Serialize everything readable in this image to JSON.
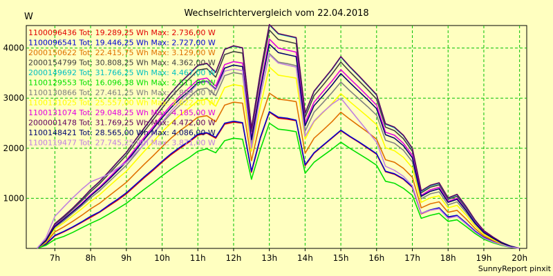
{
  "chart_data": {
    "type": "line",
    "title": "Wechselrichtervergleich vom 22.04.2018",
    "ylabel": "W",
    "credit": "SunnyReport pinxit",
    "xlim": [
      6.2,
      20.2
    ],
    "ylim": [
      0,
      4450
    ],
    "grid": true,
    "legend_position": "top-left",
    "x_ticks": [
      7,
      8,
      9,
      10,
      11,
      12,
      13,
      14,
      15,
      16,
      17,
      18,
      19,
      20
    ],
    "x_tick_labels": [
      "7h",
      "8h",
      "9h",
      "10h",
      "11h",
      "12h",
      "13h",
      "14h",
      "15h",
      "16h",
      "17h",
      "18h",
      "19h",
      "20h"
    ],
    "y_ticks": [
      1000,
      2000,
      3000,
      4000
    ],
    "y_tick_labels": [
      "1000",
      "2000",
      "3000",
      "4000"
    ],
    "x": [
      6.5,
      6.75,
      7,
      7.25,
      7.5,
      7.75,
      8,
      8.25,
      8.5,
      8.75,
      9,
      9.25,
      9.5,
      9.75,
      10,
      10.25,
      10.5,
      10.75,
      11,
      11.25,
      11.5,
      11.75,
      12,
      12.25,
      12.5,
      12.75,
      13,
      13.25,
      13.5,
      13.75,
      14,
      14.25,
      14.5,
      14.75,
      15,
      15.25,
      15.5,
      15.75,
      16,
      16.25,
      16.5,
      16.75,
      17,
      17.25,
      17.5,
      17.75,
      18,
      18.25,
      18.5,
      18.75,
      19,
      19.25,
      19.5,
      19.75,
      20
    ],
    "series": [
      {
        "name": "1100096436 Tot: 19.289,25 Wh Max: 2.736,00 W",
        "color": "#e00000",
        "values": [
          0,
          80,
          250,
          330,
          420,
          520,
          620,
          720,
          840,
          960,
          1090,
          1250,
          1410,
          1560,
          1720,
          1870,
          2000,
          2120,
          2260,
          2300,
          2200,
          2480,
          2520,
          2500,
          1520,
          2200,
          2720,
          2600,
          2580,
          2550,
          1650,
          1900,
          2050,
          2200,
          2350,
          2230,
          2120,
          2000,
          1880,
          1530,
          1480,
          1380,
          1220,
          690,
          760,
          800,
          620,
          650,
          500,
          340,
          210,
          130,
          70,
          25,
          0
        ]
      },
      {
        "name": "1100096541 Tot: 19.446,25 Wh Max: 2.727,00 W",
        "color": "#0000d0",
        "values": [
          0,
          90,
          260,
          340,
          430,
          530,
          640,
          730,
          860,
          980,
          1110,
          1270,
          1430,
          1580,
          1740,
          1890,
          2020,
          2140,
          2280,
          2310,
          2220,
          2500,
          2540,
          2510,
          1540,
          2220,
          2730,
          2620,
          2600,
          2560,
          1670,
          1910,
          2060,
          2210,
          2360,
          2240,
          2130,
          2010,
          1890,
          1540,
          1490,
          1390,
          1230,
          700,
          770,
          810,
          630,
          660,
          510,
          350,
          220,
          140,
          75,
          30,
          0
        ]
      },
      {
        "name": "2000150622 Tot: 22.415,75 Wh Max: 3.129,00 W",
        "color": "#e07000",
        "values": [
          0,
          110,
          330,
          430,
          540,
          660,
          790,
          900,
          1040,
          1180,
          1320,
          1500,
          1680,
          1850,
          2030,
          2200,
          2350,
          2480,
          2620,
          2650,
          2530,
          2860,
          2920,
          2900,
          1750,
          2550,
          3100,
          2980,
          2960,
          2930,
          1900,
          2200,
          2360,
          2530,
          2720,
          2580,
          2450,
          2320,
          2180,
          1770,
          1720,
          1600,
          1420,
          810,
          890,
          930,
          720,
          760,
          590,
          400,
          250,
          160,
          85,
          35,
          0
        ]
      },
      {
        "name": "2000154799 Tot: 30.808,25 Wh Max: 4.362,00 W",
        "color": "#404040",
        "values": [
          0,
          160,
          480,
          620,
          780,
          950,
          1130,
          1290,
          1480,
          1670,
          1860,
          2100,
          2340,
          2570,
          2800,
          3020,
          3210,
          3380,
          3560,
          3590,
          3420,
          3870,
          3930,
          3900,
          2330,
          3420,
          4360,
          4170,
          4130,
          4090,
          2620,
          3050,
          3260,
          3480,
          3720,
          3530,
          3350,
          3170,
          2980,
          2420,
          2350,
          2190,
          1940,
          1110,
          1220,
          1270,
          980,
          1040,
          810,
          550,
          340,
          220,
          115,
          45,
          0
        ]
      },
      {
        "name": "2000149692 Tot: 31.766,25 Wh Max: 4.467,00 W",
        "color": "#00c0c0",
        "values": [
          0,
          165,
          490,
          640,
          800,
          980,
          1170,
          1330,
          1520,
          1720,
          1910,
          2160,
          2400,
          2640,
          2880,
          3100,
          3300,
          3470,
          3650,
          3690,
          3510,
          3970,
          4040,
          4000,
          2390,
          3510,
          4460,
          4280,
          4240,
          4200,
          2690,
          3130,
          3350,
          3570,
          3820,
          3620,
          3440,
          3250,
          3060,
          2480,
          2410,
          2250,
          1990,
          1140,
          1250,
          1300,
          1000,
          1070,
          830,
          560,
          350,
          225,
          120,
          45,
          0
        ]
      },
      {
        "name": "1100129553 Tot: 16.096,38 Wh Max: 2.511,00 W",
        "color": "#00e000",
        "values": [
          0,
          60,
          180,
          240,
          320,
          410,
          500,
          580,
          680,
          790,
          900,
          1040,
          1180,
          1310,
          1450,
          1580,
          1700,
          1810,
          1940,
          1990,
          1910,
          2150,
          2200,
          2180,
          1380,
          1980,
          2500,
          2380,
          2360,
          2330,
          1500,
          1720,
          1850,
          1980,
          2120,
          2000,
          1890,
          1780,
          1660,
          1340,
          1300,
          1200,
          1060,
          600,
          660,
          700,
          540,
          570,
          440,
          300,
          185,
          115,
          60,
          20,
          0
        ]
      },
      {
        "name": "1100130866 Tot: 27.461,25 Wh Max: 3.893,00 W",
        "color": "#808080",
        "values": [
          0,
          140,
          420,
          550,
          700,
          850,
          1010,
          1150,
          1320,
          1490,
          1660,
          1870,
          2090,
          2290,
          2500,
          2690,
          2860,
          3010,
          3170,
          3200,
          3050,
          3450,
          3510,
          3480,
          2080,
          3050,
          3890,
          3720,
          3690,
          3650,
          2340,
          2720,
          2910,
          3110,
          3320,
          3150,
          2990,
          2830,
          2660,
          2160,
          2100,
          1960,
          1730,
          990,
          1090,
          1130,
          870,
          930,
          720,
          490,
          300,
          195,
          100,
          40,
          0
        ]
      },
      {
        "name": "1100131025 Tot: 25.557,00 Wh Max: 3.622,00 W",
        "color": "#ffff00",
        "values": [
          0,
          130,
          390,
          510,
          650,
          790,
          940,
          1070,
          1230,
          1390,
          1540,
          1740,
          1940,
          2130,
          2330,
          2500,
          2660,
          2800,
          2950,
          2980,
          2840,
          3210,
          3270,
          3240,
          1940,
          2840,
          3620,
          3460,
          3430,
          3400,
          2180,
          2530,
          2710,
          2890,
          3090,
          2930,
          2780,
          2630,
          2470,
          2010,
          1950,
          1820,
          1610,
          920,
          1010,
          1050,
          810,
          860,
          670,
          450,
          280,
          180,
          95,
          35,
          0
        ]
      },
      {
        "name": "1100131074 Tot: 29.048,25 Wh Max: 4.185,00 W",
        "color": "#e000e0",
        "values": [
          0,
          150,
          450,
          590,
          740,
          900,
          1070,
          1220,
          1400,
          1580,
          1760,
          1990,
          2220,
          2430,
          2650,
          2860,
          3040,
          3200,
          3370,
          3400,
          3240,
          3670,
          3730,
          3700,
          2210,
          3240,
          4180,
          4000,
          3960,
          3920,
          2510,
          2920,
          3130,
          3340,
          3570,
          3390,
          3220,
          3040,
          2860,
          2320,
          2260,
          2100,
          1860,
          1060,
          1170,
          1220,
          940,
          1000,
          770,
          520,
          330,
          210,
          110,
          40,
          0
        ]
      },
      {
        "name": "2000001478 Tot: 31.769,25 Wh Max: 4.472,00 W",
        "color": "#600060",
        "values": [
          0,
          165,
          495,
          645,
          805,
          985,
          1175,
          1335,
          1525,
          1725,
          1915,
          2165,
          2405,
          2645,
          2885,
          3105,
          3305,
          3475,
          3655,
          3695,
          3515,
          3975,
          4045,
          4005,
          2395,
          3515,
          4470,
          4290,
          4250,
          4210,
          2700,
          3140,
          3360,
          3580,
          3830,
          3630,
          3450,
          3260,
          3070,
          2490,
          2420,
          2260,
          2000,
          1150,
          1260,
          1310,
          1010,
          1080,
          840,
          570,
          355,
          230,
          120,
          45,
          0
        ]
      },
      {
        "name": "1100148421 Tot: 28.565,00 Wh Max: 4.086,00 W",
        "color": "#000070",
        "values": [
          0,
          148,
          440,
          580,
          730,
          880,
          1050,
          1200,
          1370,
          1550,
          1730,
          1950,
          2180,
          2390,
          2610,
          2810,
          2990,
          3140,
          3310,
          3340,
          3180,
          3600,
          3660,
          3630,
          2170,
          3180,
          4080,
          3910,
          3870,
          3830,
          2450,
          2850,
          3050,
          3260,
          3490,
          3310,
          3140,
          2970,
          2790,
          2270,
          2200,
          2050,
          1810,
          1040,
          1140,
          1190,
          920,
          980,
          760,
          510,
          320,
          205,
          105,
          40,
          0
        ]
      },
      {
        "name": "1100119477 Tot: 27.745,25 Wh Max: 3.871,00 W",
        "color": "#c080e0",
        "values": [
          0,
          210,
          640,
          830,
          1010,
          1180,
          1330,
          1400,
          1480,
          1600,
          1720,
          1900,
          2080,
          2290,
          2520,
          2740,
          2930,
          3100,
          3290,
          3330,
          3160,
          3540,
          3580,
          3550,
          2000,
          3050,
          3870,
          3700,
          3660,
          3620,
          2240,
          2540,
          2720,
          2880,
          3000,
          2780,
          2560,
          2340,
          2120,
          1640,
          1560,
          1440,
          1250,
          700,
          760,
          790,
          600,
          640,
          490,
          330,
          205,
          130,
          70,
          25,
          0
        ]
      }
    ]
  }
}
